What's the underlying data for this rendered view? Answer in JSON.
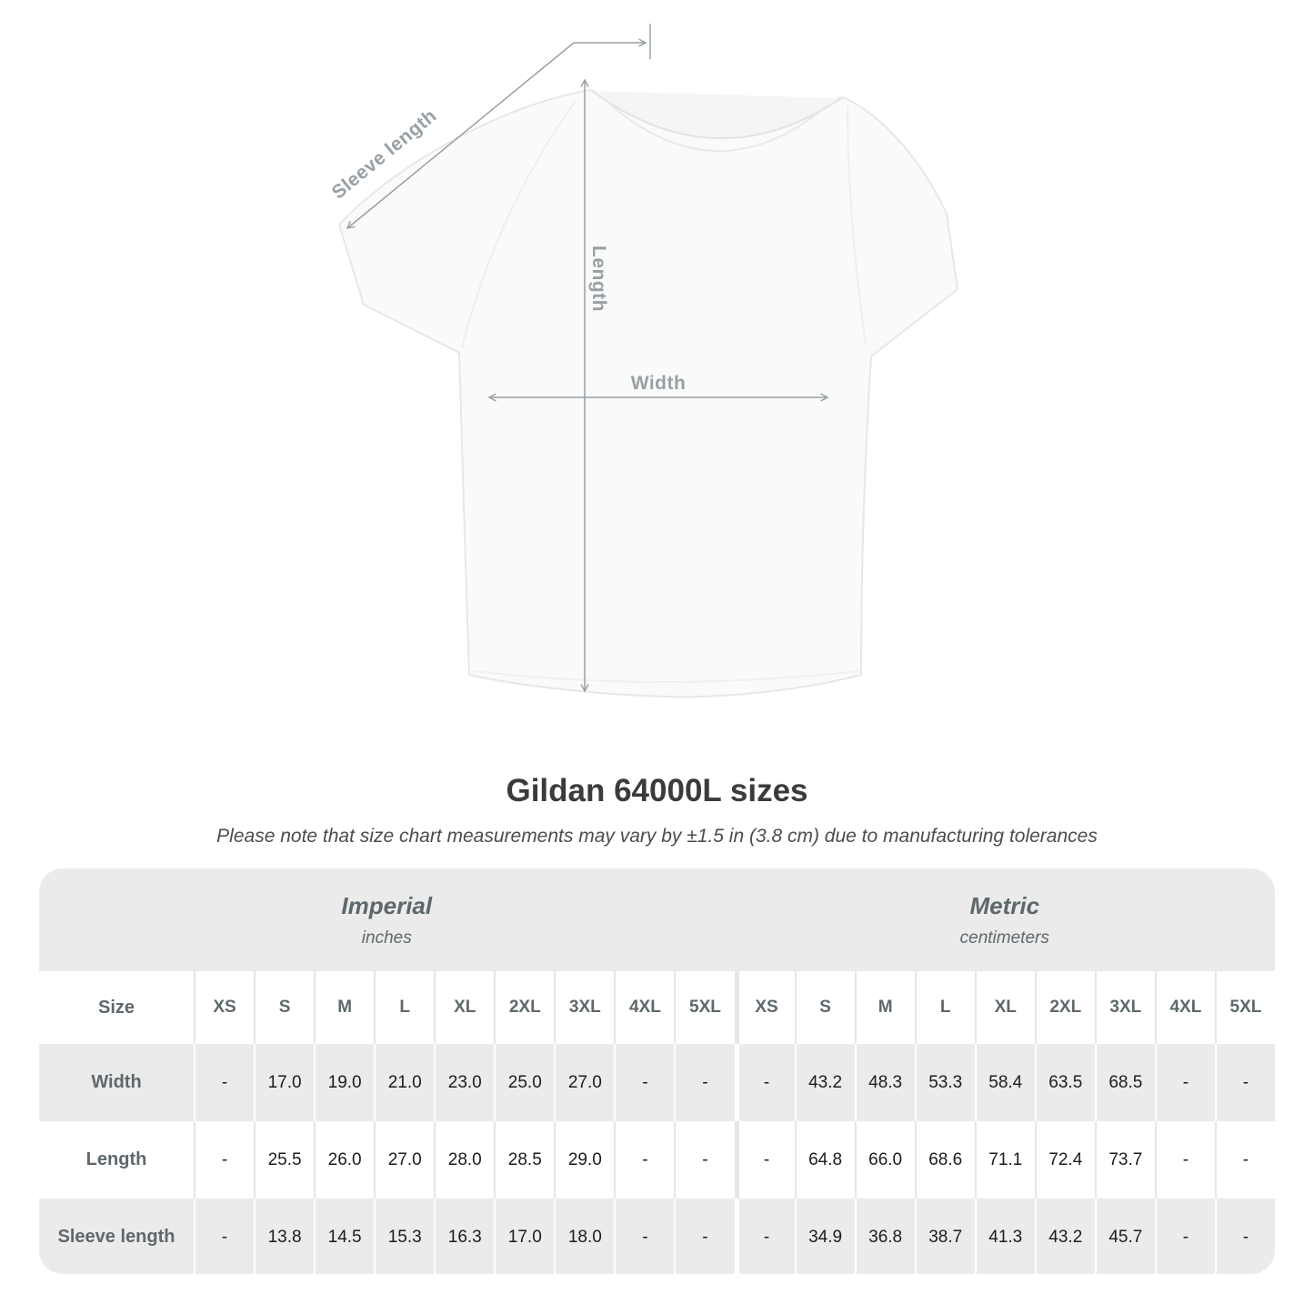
{
  "diagram": {
    "sleeve_length_label": "Sleeve length",
    "length_label": "Length",
    "width_label": "Width"
  },
  "heading": {
    "title": "Gildan 64000L sizes",
    "subtitle": "Please note that size chart measurements may vary by ±1.5 in (3.8 cm) due to manufacturing tolerances"
  },
  "size_table": {
    "corner_label": "Size",
    "unit_groups": [
      {
        "name": "Imperial",
        "unit": "inches"
      },
      {
        "name": "Metric",
        "unit": "centimeters"
      }
    ],
    "sizes": [
      "XS",
      "S",
      "M",
      "L",
      "XL",
      "2XL",
      "3XL",
      "4XL",
      "5XL"
    ],
    "rows": [
      {
        "label": "Width",
        "imperial": [
          "-",
          "17.0",
          "19.0",
          "21.0",
          "23.0",
          "25.0",
          "27.0",
          "-",
          "-"
        ],
        "metric": [
          "-",
          "43.2",
          "48.3",
          "53.3",
          "58.4",
          "63.5",
          "68.5",
          "-",
          "-"
        ]
      },
      {
        "label": "Length",
        "imperial": [
          "-",
          "25.5",
          "26.0",
          "27.0",
          "28.0",
          "28.5",
          "29.0",
          "-",
          "-"
        ],
        "metric": [
          "-",
          "64.8",
          "66.0",
          "68.6",
          "71.1",
          "72.4",
          "73.7",
          "-",
          "-"
        ]
      },
      {
        "label": "Sleeve length",
        "imperial": [
          "-",
          "13.8",
          "14.5",
          "15.3",
          "16.3",
          "17.0",
          "18.0",
          "-",
          "-"
        ],
        "metric": [
          "-",
          "34.9",
          "36.8",
          "38.7",
          "41.3",
          "43.2",
          "45.7",
          "-",
          "-"
        ]
      }
    ]
  },
  "colors": {
    "band_bg": "#ebebeb",
    "row_alt_bg": "#ebebeb",
    "header_text": "#5e686c",
    "value_text": "#1c1c1c",
    "diagram_gray": "#98a0a4",
    "title_text": "#3b3b3b"
  }
}
